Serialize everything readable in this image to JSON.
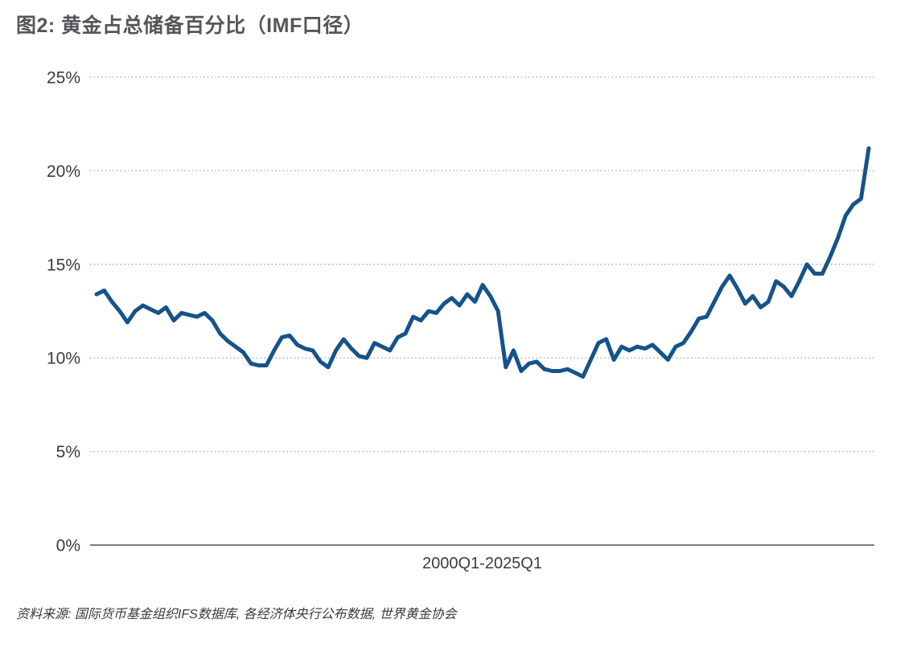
{
  "figure": {
    "source": "资料来源: 国际货币基金组织IFS数据库, 各经济体央行公布数据, 世界黄金协会"
  },
  "chart_data": {
    "type": "line",
    "title": "图2: 黄金占总储备百分比（IMF口径）",
    "xlabel": "2000Q1-2025Q1",
    "x_start": "2000Q1",
    "x_end": "2025Q1",
    "x_frequency": "quarterly",
    "ylim": [
      0,
      25
    ],
    "ytick_values": [
      25,
      20,
      15,
      10,
      5,
      0
    ],
    "ytick_labels": [
      "25%",
      "20%",
      "15%",
      "10%",
      "5%",
      "0%"
    ],
    "grid": "horizontal-dotted",
    "legend": "none",
    "line_color": "#15538A",
    "axis_color": "#7C7C7C",
    "gridline_color": "#A6A6A6",
    "series": [
      {
        "name": "黄金占总储备百分比",
        "values": [
          13.4,
          13.6,
          13.0,
          12.5,
          11.9,
          12.5,
          12.8,
          12.6,
          12.4,
          12.7,
          12.0,
          12.4,
          12.3,
          12.2,
          12.4,
          12.0,
          11.3,
          10.9,
          10.6,
          10.3,
          9.7,
          9.6,
          9.6,
          10.4,
          11.1,
          11.2,
          10.7,
          10.5,
          10.4,
          9.8,
          9.5,
          10.4,
          11.0,
          10.5,
          10.1,
          10.0,
          10.8,
          10.6,
          10.4,
          11.1,
          11.3,
          12.2,
          12.0,
          12.5,
          12.4,
          12.9,
          13.2,
          12.8,
          13.4,
          13.0,
          13.9,
          13.3,
          12.5,
          9.5,
          10.4,
          9.3,
          9.7,
          9.8,
          9.4,
          9.3,
          9.3,
          9.4,
          9.2,
          9.0,
          9.9,
          10.8,
          11.0,
          9.9,
          10.6,
          10.4,
          10.6,
          10.5,
          10.7,
          10.3,
          9.9,
          10.6,
          10.8,
          11.4,
          12.1,
          12.2,
          13.0,
          13.8,
          14.4,
          13.7,
          12.9,
          13.3,
          12.7,
          13.0,
          14.1,
          13.8,
          13.3,
          14.1,
          15.0,
          14.5,
          14.5,
          15.4,
          16.4,
          17.6,
          18.2,
          18.5,
          21.2
        ]
      }
    ]
  }
}
